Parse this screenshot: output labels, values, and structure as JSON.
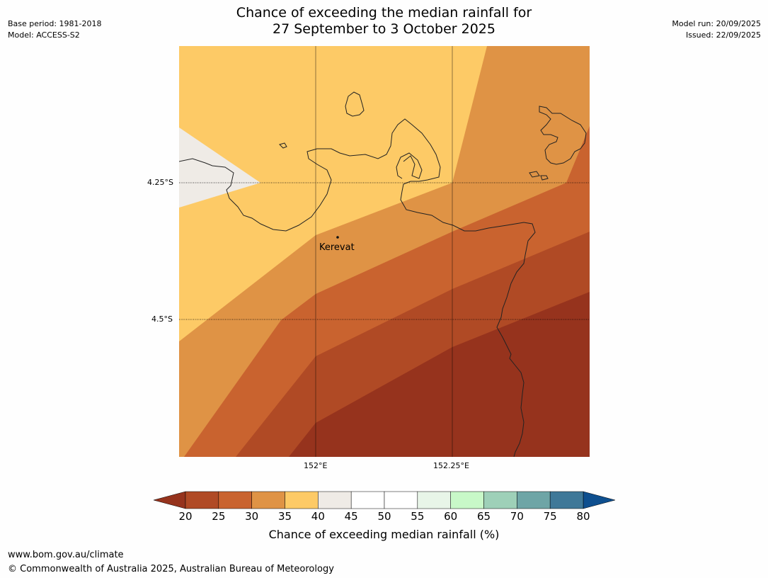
{
  "header": {
    "title_line1": "Chance of exceeding the median rainfall for",
    "title_line2": "27 September to 3 October 2025",
    "base_period": "Base period: 1981-2018",
    "model": "Model: ACCESS-S2",
    "model_run": "Model run: 20/09/2025",
    "issued": "Issued: 22/09/2025"
  },
  "map": {
    "lat_labels": [
      "4.25°S",
      "4.5°S"
    ],
    "lon_labels": [
      "152°E",
      "152.25°E"
    ],
    "place": {
      "name": "Kerevat"
    },
    "colors": {
      "c20_25": "#b04a25",
      "c25_30": "#c9632f",
      "c30_35": "#df9345",
      "c35_40": "#fdca66",
      "c40_45": "#efebe6",
      "below_20": "#96331d"
    }
  },
  "colorbar": {
    "ticks": [
      "20",
      "25",
      "30",
      "35",
      "40",
      "45",
      "50",
      "55",
      "60",
      "65",
      "70",
      "75",
      "80"
    ],
    "label": "Chance of exceeding median rainfall (%)",
    "colors": [
      "#b04a25",
      "#c9632f",
      "#df9345",
      "#fdca66",
      "#efebe6",
      "#ffffff",
      "#ffffff",
      "#e8f5e8",
      "#c8f8c8",
      "#9ed0b8",
      "#6ea5a6",
      "#3f7898"
    ],
    "under_color": "#96331d",
    "over_color": "#0e4f8f"
  },
  "footer": {
    "url": "www.bom.gov.au/climate",
    "copyright": "© Commonwealth of Australia 2025, Australian Bureau of Meteorology"
  }
}
